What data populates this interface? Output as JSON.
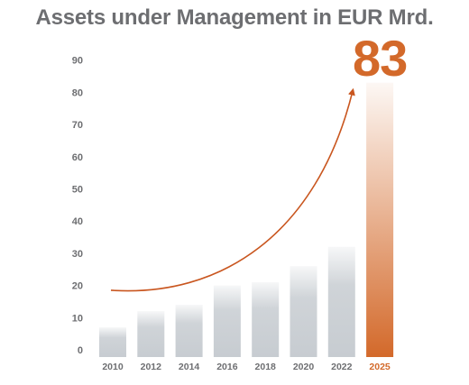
{
  "title": "Assets under Management in EUR Mrd.",
  "colors": {
    "bar": "#c7ccd1",
    "highlight": "#d3692a",
    "text": "#6d6e71",
    "arrow": "#c9561f"
  },
  "chart_data": {
    "type": "bar",
    "title": "Assets under Management in EUR Mrd.",
    "categories": [
      "2010",
      "2012",
      "2014",
      "2016",
      "2018",
      "2020",
      "2022",
      "2025"
    ],
    "values": [
      7,
      12,
      14,
      20,
      21,
      26,
      32,
      83
    ],
    "highlight_index": 7,
    "highlight_label": "83",
    "ylim": [
      0,
      90
    ],
    "yticks": [
      0,
      10,
      20,
      30,
      40,
      50,
      60,
      70,
      80,
      90
    ],
    "xlabel": "",
    "ylabel": "",
    "grid": false,
    "annotation": "curved growth arrow from 2010 toward 2025"
  }
}
